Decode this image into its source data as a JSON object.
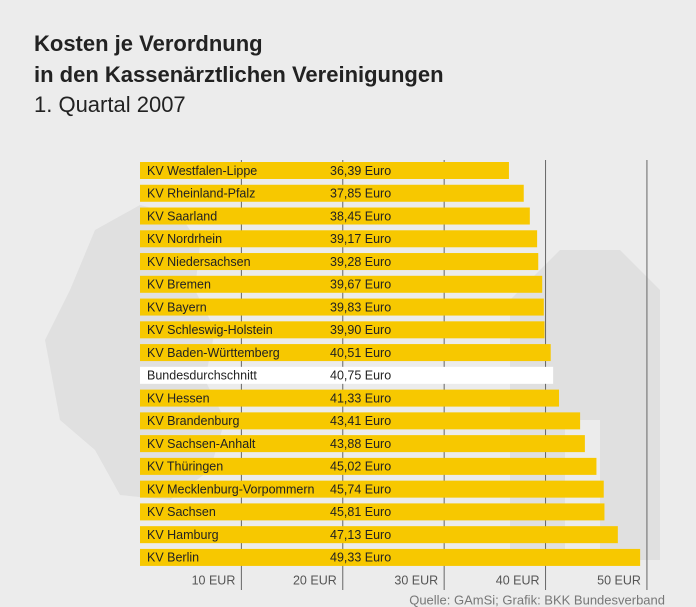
{
  "chart_data": {
    "type": "hbar",
    "title": [
      "Kosten je Verordnung",
      "in den Kassenärztlichen Vereinigungen"
    ],
    "subtitle": "1. Quartal 2007",
    "source": "Quelle: GAmSi; Grafik: BKK Bundesverband",
    "categories": [
      "KV Westfalen-Lippe",
      "KV Rheinland-Pfalz",
      "KV Saarland",
      "KV Nordrhein",
      "KV Niedersachsen",
      "KV Bremen",
      "KV Bayern",
      "KV Schleswig-Holstein",
      "KV Baden-Württemberg",
      "Bundesdurchschnitt",
      "KV Hessen",
      "KV Brandenburg",
      "KV Sachsen-Anhalt",
      "KV Thüringen",
      "KV Mecklenburg-Vorpommern",
      "KV Sachsen",
      "KV Hamburg",
      "KV Berlin"
    ],
    "values": [
      36.39,
      37.85,
      38.45,
      39.17,
      39.28,
      39.67,
      39.83,
      39.9,
      40.51,
      40.75,
      41.33,
      43.41,
      43.88,
      45.02,
      45.74,
      45.81,
      47.13,
      49.33
    ],
    "value_labels": [
      "36,39 Euro",
      "37,85 Euro",
      "38,45 Euro",
      "39,17 Euro",
      "39,28 Euro",
      "39,67 Euro",
      "39,83 Euro",
      "39,90 Euro",
      "40,51 Euro",
      "40,75 Euro",
      "41,33 Euro",
      "43,41 Euro",
      "43,88 Euro",
      "45,02 Euro",
      "45,74 Euro",
      "45,81 Euro",
      "47,13 Euro",
      "49,33 Euro"
    ],
    "colors": [
      "#f7c800",
      "#f7c800",
      "#f7c800",
      "#f7c800",
      "#f7c800",
      "#f7c800",
      "#f7c800",
      "#f7c800",
      "#f7c800",
      "#ffffff",
      "#f7c800",
      "#f7c800",
      "#f7c800",
      "#f7c800",
      "#f7c800",
      "#f7c800",
      "#f7c800",
      "#f7c800"
    ],
    "xlim": [
      0,
      50.5
    ],
    "xticks": [
      {
        "value": 10,
        "label": "10 EUR"
      },
      {
        "value": 20,
        "label": "20 EUR"
      },
      {
        "value": 30,
        "label": "30 EUR"
      },
      {
        "value": 40,
        "label": "40 EUR"
      },
      {
        "value": 50,
        "label": "50 EUR"
      }
    ],
    "grid": true
  }
}
